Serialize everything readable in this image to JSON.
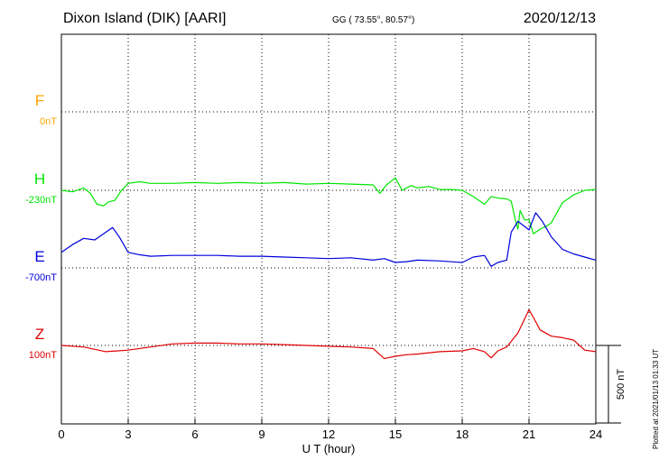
{
  "header": {
    "station": "Dixon Island (DIK)  [AARI]",
    "coords": "GG ( 73.55°,  80.57°)",
    "date": "2020/12/13"
  },
  "footer": {
    "plotted": "Plotted at 2021/01/13 01:33 UT"
  },
  "colors": {
    "F": "#ffa500",
    "H": "#00e600",
    "E": "#0000dd",
    "Z": "#e00000"
  },
  "chart_data": {
    "type": "line",
    "xlabel": "U T (hour)",
    "xlim": [
      0,
      24
    ],
    "xticks": [
      0,
      3,
      6,
      9,
      12,
      15,
      18,
      21,
      24
    ],
    "scale_bar_label": "500 nT",
    "scale_bar_nT": 500,
    "series": [
      {
        "name": "F",
        "baseline_label": "0nT",
        "baseline_nT": 0,
        "x": [],
        "y": []
      },
      {
        "name": "H",
        "baseline_label": "-230nT",
        "baseline_nT": -230,
        "x": [
          0,
          0.5,
          1,
          1.3,
          1.6,
          1.9,
          2.1,
          2.4,
          2.7,
          3,
          3.5,
          4,
          5,
          6,
          7,
          8,
          9,
          10,
          11,
          12,
          13,
          14,
          14.3,
          14.6,
          15,
          15.3,
          15.7,
          16,
          16.5,
          17,
          17.5,
          18,
          18.5,
          19,
          19.3,
          19.6,
          20,
          20.2,
          20.4,
          20.5,
          20.6,
          20.8,
          21,
          21.2,
          21.5,
          21.8,
          22,
          22.5,
          23,
          23.5,
          24
        ],
        "y": [
          -230,
          -240,
          -215,
          -250,
          -320,
          -330,
          -305,
          -295,
          -230,
          -185,
          -175,
          -185,
          -185,
          -180,
          -185,
          -180,
          -185,
          -180,
          -190,
          -185,
          -190,
          -195,
          -250,
          -195,
          -150,
          -230,
          -200,
          -215,
          -205,
          -225,
          -225,
          -230,
          -270,
          -320,
          -270,
          -280,
          -285,
          -300,
          -430,
          -480,
          -360,
          -420,
          -420,
          -510,
          -480,
          -460,
          -440,
          -310,
          -260,
          -230,
          -225
        ]
      },
      {
        "name": "E",
        "baseline_label": "-700nT",
        "baseline_nT": -700,
        "x": [
          0,
          0.5,
          1,
          1.5,
          2,
          2.3,
          2.6,
          3,
          3.5,
          4,
          5,
          6,
          7,
          8,
          9,
          10,
          11,
          12,
          13,
          14,
          14.5,
          15,
          15.5,
          16,
          17,
          18,
          18.5,
          19,
          19.3,
          19.6,
          20,
          20.2,
          20.5,
          21,
          21.3,
          21.6,
          22,
          22.5,
          23,
          23.5,
          24
        ],
        "y": [
          -600,
          -550,
          -510,
          -520,
          -470,
          -440,
          -500,
          -600,
          -615,
          -625,
          -620,
          -620,
          -620,
          -625,
          -625,
          -630,
          -635,
          -640,
          -635,
          -650,
          -640,
          -665,
          -660,
          -650,
          -655,
          -665,
          -630,
          -620,
          -690,
          -665,
          -650,
          -470,
          -400,
          -455,
          -345,
          -400,
          -500,
          -580,
          -610,
          -630,
          -650
        ]
      },
      {
        "name": "Z",
        "baseline_label": "100nT",
        "baseline_nT": 100,
        "x": [
          0,
          1,
          2,
          3,
          4,
          5,
          6,
          7,
          8,
          9,
          10,
          11,
          12,
          13,
          14,
          14.5,
          15,
          15.5,
          16,
          17,
          18,
          18.5,
          19,
          19.3,
          19.6,
          20,
          20.5,
          21,
          21.2,
          21.5,
          22,
          22.5,
          23,
          23.5,
          24
        ],
        "y": [
          100,
          90,
          60,
          70,
          90,
          110,
          115,
          115,
          110,
          110,
          105,
          100,
          95,
          90,
          80,
          15,
          30,
          40,
          45,
          60,
          65,
          80,
          60,
          20,
          65,
          90,
          180,
          330,
          280,
          200,
          160,
          150,
          135,
          70,
          60
        ]
      }
    ]
  }
}
